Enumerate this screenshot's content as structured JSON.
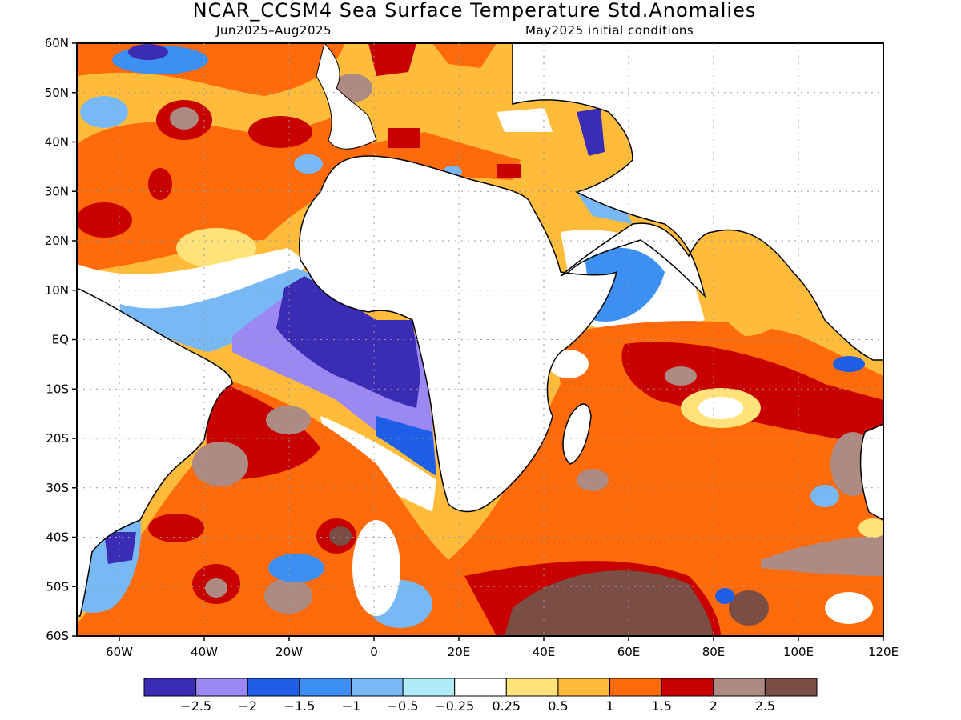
{
  "title": "NCAR_CCSM4 Sea Surface Temperature Std.Anomalies",
  "subtitle_period": "Jun2025–Aug2025",
  "subtitle_init": "May2025 initial conditions",
  "lat_labels": [
    "60N",
    "50N",
    "40N",
    "30N",
    "20N",
    "10N",
    "EQ",
    "10S",
    "20S",
    "30S",
    "40S",
    "50S",
    "60S"
  ],
  "lon_labels": [
    "60W",
    "40W",
    "20W",
    "0",
    "20E",
    "40E",
    "60E",
    "80E",
    "100E",
    "120E"
  ],
  "colorbar": {
    "colors": [
      "#3a2cb4",
      "#9b88f2",
      "#1f5ee6",
      "#3d8ff2",
      "#78b9f5",
      "#b0ecf8",
      "#ffffff",
      "#ffe37a",
      "#ffbb3a",
      "#ff6a0a",
      "#c80000",
      "#ad8a82",
      "#7a4d45"
    ],
    "labels": [
      "−2.5",
      "−2",
      "−1.5",
      "−1",
      "−0.5",
      "−0.25",
      "0.25",
      "0.5",
      "1",
      "1.5",
      "2",
      "2.5"
    ]
  }
}
